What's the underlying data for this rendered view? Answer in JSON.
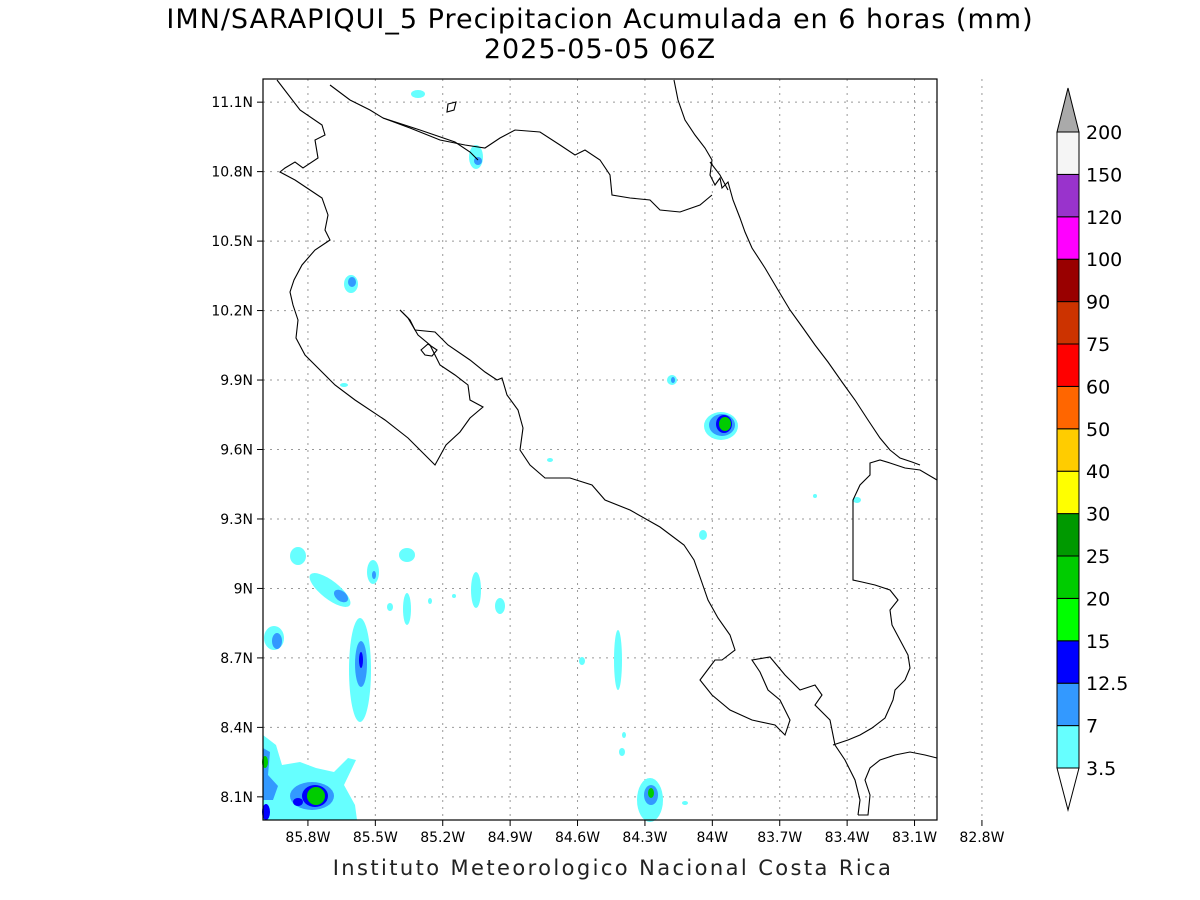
{
  "title": {
    "line1": "IMN/SARAPIQUI_5 Precipitacion Acumulada en 6 horas (mm)",
    "line2": "2025-05-05 06Z"
  },
  "credit": "Instituto Meteorologico Nacional Costa Rica",
  "map": {
    "lon_range": [
      -86.0,
      -83.0
    ],
    "lat_range": [
      8.0,
      11.2
    ],
    "gridlines": true,
    "lat_ticks": [
      {
        "value": 8.1,
        "label": "8.1N"
      },
      {
        "value": 8.4,
        "label": "8.4N"
      },
      {
        "value": 8.7,
        "label": "8.7N"
      },
      {
        "value": 9.0,
        "label": "9N"
      },
      {
        "value": 9.3,
        "label": "9.3N"
      },
      {
        "value": 9.6,
        "label": "9.6N"
      },
      {
        "value": 9.9,
        "label": "9.9N"
      },
      {
        "value": 10.2,
        "label": "10.2N"
      },
      {
        "value": 10.5,
        "label": "10.5N"
      },
      {
        "value": 10.8,
        "label": "10.8N"
      },
      {
        "value": 11.1,
        "label": "11.1N"
      }
    ],
    "lon_ticks": [
      {
        "value": -85.8,
        "label": "85.8W"
      },
      {
        "value": -85.5,
        "label": "85.5W"
      },
      {
        "value": -85.2,
        "label": "85.2W"
      },
      {
        "value": -84.9,
        "label": "84.9W"
      },
      {
        "value": -84.6,
        "label": "84.6W"
      },
      {
        "value": -84.3,
        "label": "84.3W"
      },
      {
        "value": -84.0,
        "label": "84W"
      },
      {
        "value": -83.7,
        "label": "83.7W"
      },
      {
        "value": -83.4,
        "label": "83.4W"
      },
      {
        "value": -83.1,
        "label": "83.1W"
      },
      {
        "value": -82.8,
        "label": "82.8W"
      }
    ]
  },
  "colorbar": {
    "labels": [
      "3.5",
      "7",
      "12.5",
      "15",
      "20",
      "25",
      "30",
      "40",
      "50",
      "60",
      "75",
      "90",
      "100",
      "120",
      "150",
      "200"
    ],
    "colors": [
      "#66ffff",
      "#3399ff",
      "#0000ff",
      "#00ff00",
      "#00cc00",
      "#009900",
      "#ffff00",
      "#ffcc00",
      "#ff6600",
      "#ff0000",
      "#cc3300",
      "#990000",
      "#ff00ff",
      "#9933cc",
      "#f5f5f5"
    ],
    "over_color": "#aaaaaa",
    "under_color": "#ffffff"
  }
}
